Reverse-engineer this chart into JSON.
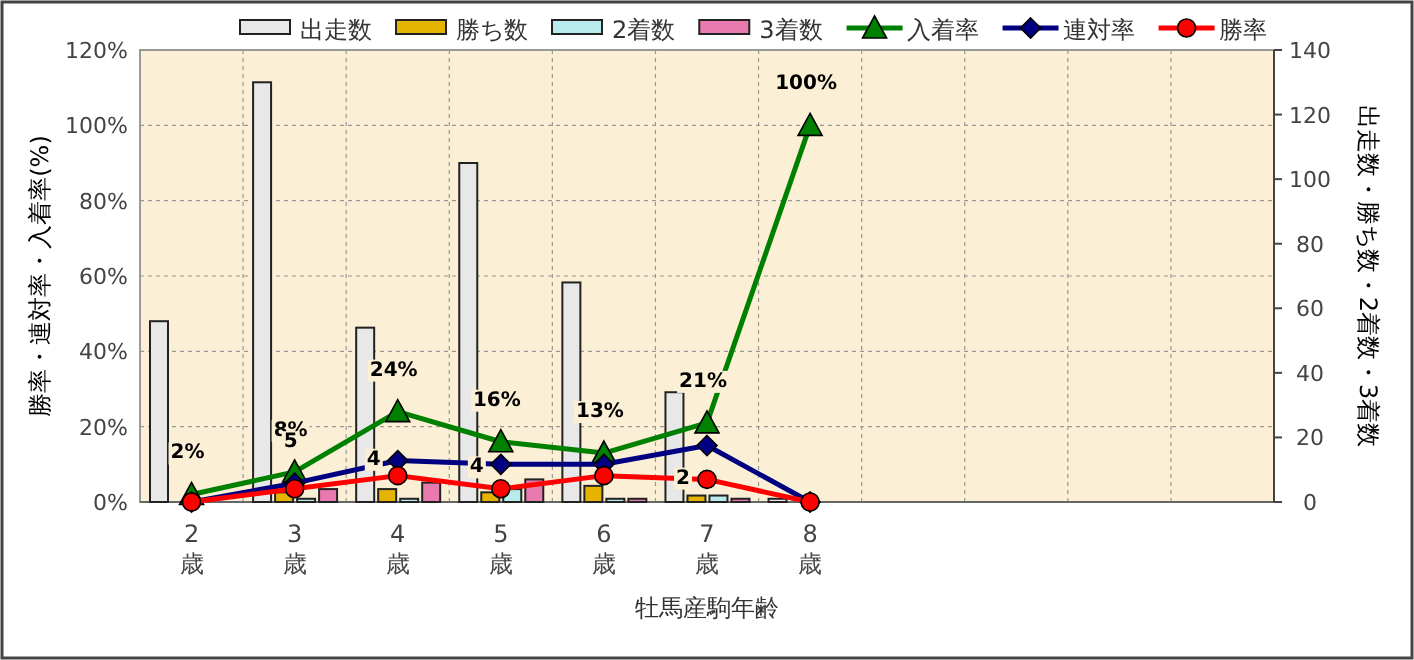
{
  "chart_data": {
    "type": "bar",
    "xlabel": "牡馬産駒年齢",
    "ylabel": "勝率・連対率・入着率(%)",
    "y2label": "出走数・勝ち数・2着数・3着数",
    "categories": [
      "2\n歳",
      "3\n歳",
      "4\n歳",
      "5\n歳",
      "6\n歳",
      "7\n歳",
      "8\n歳",
      null,
      null,
      null,
      null
    ],
    "series": [
      {
        "name": "出走数",
        "axis": "y2",
        "color": "#e8e8e8",
        "values": [
          56,
          130,
          54,
          105,
          68,
          34,
          1,
          null,
          null,
          null,
          null
        ]
      },
      {
        "name": "勝ち数",
        "axis": "y2",
        "color": "#e6b400",
        "values": [
          0,
          3,
          4,
          3,
          5,
          2,
          0,
          null,
          null,
          null,
          null
        ]
      },
      {
        "name": "2着数",
        "axis": "y2",
        "color": "#b8ecec",
        "values": [
          0,
          1,
          1,
          4,
          1,
          2,
          0,
          null,
          null,
          null,
          null
        ]
      },
      {
        "name": "3着数",
        "axis": "y2",
        "color": "#e87ab0",
        "values": [
          0,
          4,
          6,
          7,
          1,
          1,
          0,
          null,
          null,
          null,
          null
        ]
      },
      {
        "name": "入着率",
        "type": "line",
        "marker": "triangle",
        "color": "#008000",
        "values": [
          2,
          8,
          24,
          16,
          13,
          21,
          100,
          null,
          null,
          null,
          null
        ],
        "value_labels": [
          "2%",
          "8%",
          "24%",
          "16%",
          "13%",
          "21%",
          "100%",
          null,
          null,
          null,
          null
        ]
      },
      {
        "name": "連対率",
        "type": "line",
        "marker": "diamond",
        "color": "#000080",
        "values": [
          0,
          5,
          11,
          10,
          10,
          15,
          0,
          null,
          null,
          null,
          null
        ],
        "value_labels": [
          null,
          "5",
          null,
          null,
          null,
          null,
          null,
          null,
          null,
          null,
          null
        ]
      },
      {
        "name": "勝率",
        "type": "line",
        "marker": "circle",
        "color": "#ff0000",
        "values": [
          0,
          3.5,
          7,
          3.5,
          7,
          6,
          0,
          null,
          null,
          null,
          null
        ]
      }
    ],
    "annotations": [
      {
        "text": "4",
        "x": "4\n歳",
        "y": 12
      },
      {
        "text": "4",
        "x": "5\n歳",
        "y": 10
      },
      {
        "text": "2",
        "x": "7\n歳",
        "y": 7
      }
    ],
    "ylim": [
      0,
      120
    ],
    "yticks": [
      {
        "value": 0,
        "label": "0%"
      },
      {
        "value": 20,
        "label": "20%"
      },
      {
        "value": 40,
        "label": "40%"
      },
      {
        "value": 60,
        "label": "60%"
      },
      {
        "value": 80,
        "label": "80%"
      },
      {
        "value": 100,
        "label": "100%"
      },
      {
        "value": 120,
        "label": "120%"
      }
    ],
    "y2lim": [
      0,
      140
    ],
    "y2ticks": [
      0,
      20,
      40,
      60,
      80,
      100,
      120,
      140
    ],
    "grid": true,
    "legend": "top"
  }
}
